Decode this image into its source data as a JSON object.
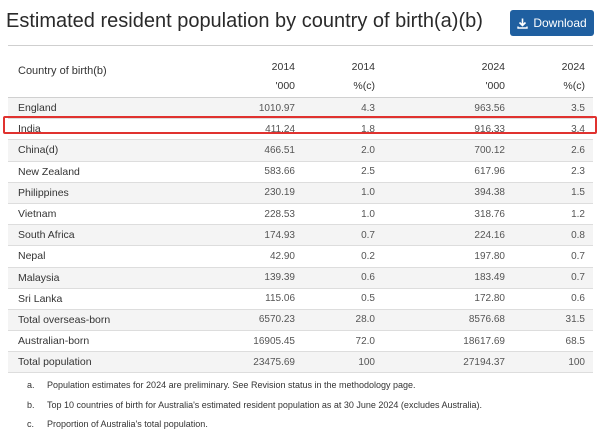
{
  "title": "Estimated resident population by country of birth(a)(b)",
  "download": {
    "label": "Download",
    "icon": "download-icon"
  },
  "table": {
    "country_header": "Country of birth(b)",
    "year_headers": [
      "2014",
      "2014",
      "2024",
      "2024"
    ],
    "unit_headers": [
      "'000",
      "%(c)",
      "'000",
      "%(c)"
    ],
    "rows": [
      {
        "country": "England",
        "v2014": "1010.97",
        "p2014": "4.3",
        "v2024": "963.56",
        "p2024": "3.5"
      },
      {
        "country": "India",
        "v2014": "411.24",
        "p2014": "1.8",
        "v2024": "916.33",
        "p2024": "3.4"
      },
      {
        "country": "China(d)",
        "v2014": "466.51",
        "p2014": "2.0",
        "v2024": "700.12",
        "p2024": "2.6"
      },
      {
        "country": "New Zealand",
        "v2014": "583.66",
        "p2014": "2.5",
        "v2024": "617.96",
        "p2024": "2.3"
      },
      {
        "country": "Philippines",
        "v2014": "230.19",
        "p2014": "1.0",
        "v2024": "394.38",
        "p2024": "1.5"
      },
      {
        "country": "Vietnam",
        "v2014": "228.53",
        "p2014": "1.0",
        "v2024": "318.76",
        "p2024": "1.2"
      },
      {
        "country": "South Africa",
        "v2014": "174.93",
        "p2014": "0.7",
        "v2024": "224.16",
        "p2024": "0.8"
      },
      {
        "country": "Nepal",
        "v2014": "42.90",
        "p2014": "0.2",
        "v2024": "197.80",
        "p2024": "0.7"
      },
      {
        "country": "Malaysia",
        "v2014": "139.39",
        "p2014": "0.6",
        "v2024": "183.49",
        "p2024": "0.7"
      },
      {
        "country": "Sri Lanka",
        "v2014": "115.06",
        "p2014": "0.5",
        "v2024": "172.80",
        "p2024": "0.6"
      },
      {
        "country": "Total overseas-born",
        "v2014": "6570.23",
        "p2014": "28.0",
        "v2024": "8576.68",
        "p2024": "31.5"
      },
      {
        "country": "Australian-born",
        "v2014": "16905.45",
        "p2014": "72.0",
        "v2024": "18617.69",
        "p2024": "68.5"
      },
      {
        "country": "Total population",
        "v2014": "23475.69",
        "p2014": "100",
        "v2024": "27194.37",
        "p2024": "100"
      }
    ]
  },
  "highlight": {
    "row": "India",
    "color": "#e0322f"
  },
  "notes": [
    {
      "mark": "a.",
      "text": "Population estimates for 2024 are preliminary. See Revision status in the methodology page."
    },
    {
      "mark": "b.",
      "text": "Top 10 countries of birth for Australia's estimated resident population as at 30 June 2024 (excludes Australia)."
    },
    {
      "mark": "c.",
      "text": "Proportion of Australia's total population."
    }
  ],
  "colors": {
    "button": "#1f5fa0",
    "highlight": "#e0322f",
    "stripe": "#f4f4f4"
  }
}
